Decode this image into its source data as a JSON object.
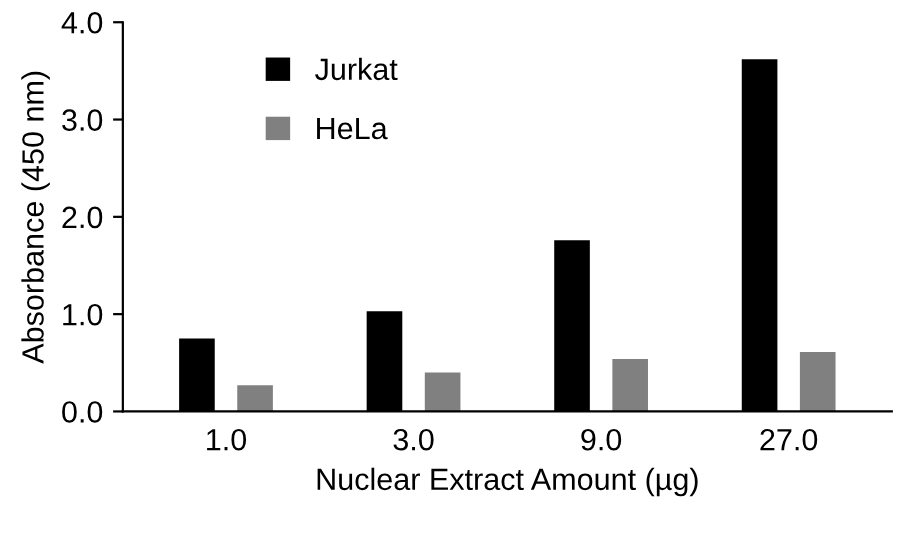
{
  "chart_data": {
    "type": "bar",
    "xlabel": "Nuclear Extract Amount (µg)",
    "ylabel": "Absorbance (450 nm)",
    "categories": [
      "1.0",
      "3.0",
      "9.0",
      "27.0"
    ],
    "series": [
      {
        "name": "Jurkat",
        "color": "#000000",
        "values": [
          0.75,
          1.03,
          1.76,
          3.62
        ]
      },
      {
        "name": "HeLa",
        "color": "#808080",
        "values": [
          0.27,
          0.4,
          0.54,
          0.61
        ]
      }
    ],
    "ylim": [
      0,
      4
    ],
    "yticks": [
      {
        "value": 0,
        "label": "0.0"
      },
      {
        "value": 1,
        "label": "1.0"
      },
      {
        "value": 2,
        "label": "2.0"
      },
      {
        "value": 3,
        "label": "3.0"
      },
      {
        "value": 4,
        "label": "4.0"
      }
    ],
    "grid": false,
    "legend": "top left"
  }
}
